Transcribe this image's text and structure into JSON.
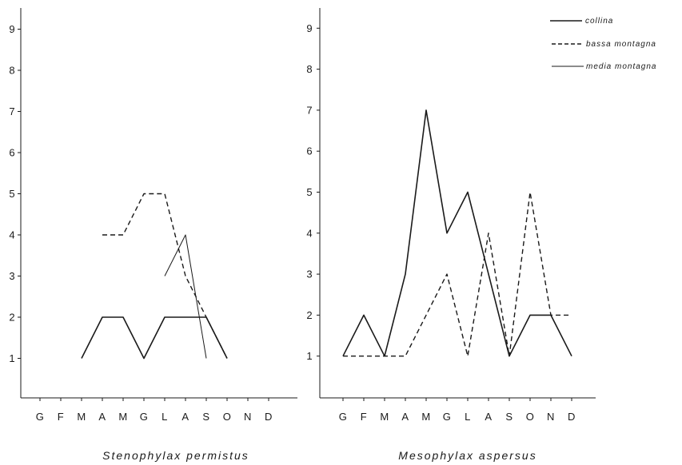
{
  "chart_data": [
    {
      "type": "line",
      "title": "Stenophylax permistus",
      "categories": [
        "G",
        "F",
        "M",
        "A",
        "M",
        "G",
        "L",
        "A",
        "S",
        "O",
        "N",
        "D"
      ],
      "yticks": [
        1,
        2,
        3,
        4,
        5,
        6,
        7,
        8,
        9
      ],
      "ylim": [
        0,
        9.5
      ],
      "grid": false,
      "series": [
        {
          "name": "collina",
          "style": "solid",
          "points": [
            [
              2,
              1
            ],
            [
              3,
              2
            ],
            [
              4,
              2
            ],
            [
              5,
              1
            ],
            [
              6,
              2
            ],
            [
              7,
              2
            ],
            [
              8,
              2
            ],
            [
              9,
              1
            ]
          ]
        },
        {
          "name": "bassa montagna",
          "style": "dashed",
          "points": [
            [
              3,
              4
            ],
            [
              4,
              4
            ],
            [
              5,
              5
            ],
            [
              6,
              5
            ],
            [
              7,
              3
            ],
            [
              9,
              1
            ]
          ]
        },
        {
          "name": "media montagna",
          "style": "thin",
          "points": [
            [
              6,
              3
            ],
            [
              7,
              4
            ],
            [
              8,
              1
            ]
          ]
        }
      ]
    },
    {
      "type": "line",
      "title": "Mesophylax aspersus",
      "categories": [
        "G",
        "F",
        "M",
        "A",
        "M",
        "G",
        "L",
        "A",
        "S",
        "O",
        "N",
        "D"
      ],
      "yticks": [
        1,
        2,
        3,
        4,
        5,
        6,
        7,
        8,
        9
      ],
      "ylim": [
        0,
        9.5
      ],
      "grid": false,
      "legend_position": "top-right",
      "series": [
        {
          "name": "collina",
          "style": "solid",
          "points": [
            [
              0,
              1
            ],
            [
              1,
              2
            ],
            [
              2,
              1
            ],
            [
              3,
              3
            ],
            [
              4,
              7
            ],
            [
              5,
              4
            ],
            [
              6,
              5
            ],
            [
              7,
              3
            ],
            [
              8,
              1
            ],
            [
              9,
              2
            ],
            [
              10,
              2
            ],
            [
              11,
              1
            ]
          ]
        },
        {
          "name": "bassa montagna",
          "style": "dashed",
          "points": [
            [
              0,
              1
            ],
            [
              1,
              1
            ],
            [
              2,
              1
            ],
            [
              3,
              1
            ],
            [
              4,
              2
            ],
            [
              5,
              3
            ],
            [
              6,
              1
            ],
            [
              7,
              4
            ],
            [
              8,
              1
            ],
            [
              9,
              5
            ],
            [
              10,
              2
            ],
            [
              11,
              2
            ]
          ]
        }
      ]
    }
  ],
  "legend": [
    {
      "label": "collina",
      "style": "solid"
    },
    {
      "label": "bassa montagna",
      "style": "dashed"
    },
    {
      "label": "media montagna",
      "style": "thin"
    }
  ]
}
